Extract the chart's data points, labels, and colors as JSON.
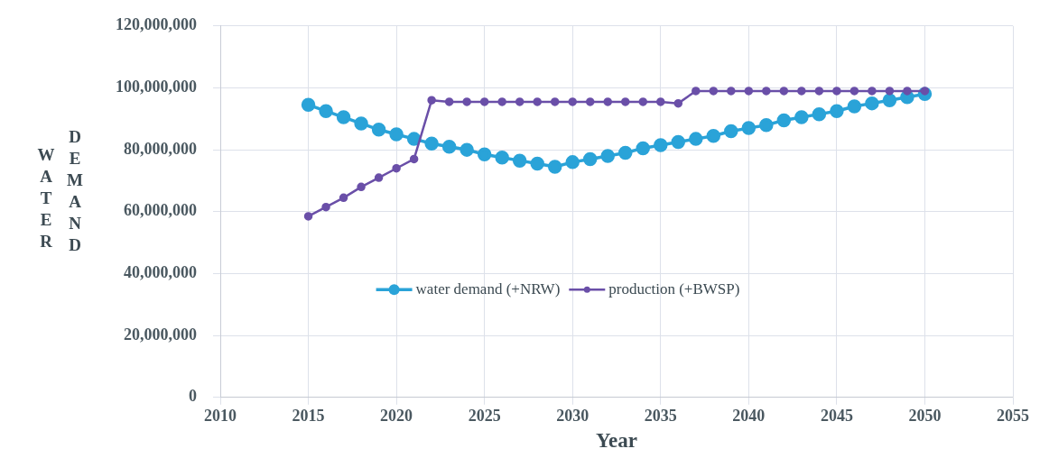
{
  "chart_data": {
    "type": "line",
    "xlabel": "Year",
    "ylabel": "WATER DEMAND",
    "xlim": [
      2010,
      2055
    ],
    "xticks": [
      2010,
      2015,
      2020,
      2025,
      2030,
      2035,
      2040,
      2045,
      2050,
      2055
    ],
    "ylim": [
      0,
      120000000
    ],
    "yticks": [
      0,
      {
        "value": 20000000,
        "label": "20,000,000"
      },
      {
        "value": 40000000,
        "label": "40,000,000"
      },
      {
        "value": 60000000,
        "label": "60,000,000"
      },
      {
        "value": 80000000,
        "label": "80,000,000"
      },
      {
        "value": 100000000,
        "label": "100,000,000"
      },
      {
        "value": 120000000,
        "label": "120,000,000"
      }
    ],
    "grid": true,
    "legend": "center",
    "marker": "circle",
    "x": [
      2015,
      2016,
      2017,
      2018,
      2019,
      2020,
      2021,
      2022,
      2023,
      2024,
      2025,
      2026,
      2027,
      2028,
      2029,
      2030,
      2031,
      2032,
      2033,
      2034,
      2035,
      2036,
      2037,
      2038,
      2039,
      2040,
      2041,
      2042,
      2043,
      2044,
      2045,
      2046,
      2047,
      2048,
      2049,
      2050
    ],
    "series": [
      {
        "name": "water demand (+NRW)",
        "color": "#2aa3d8",
        "values": [
          94500000,
          92500000,
          90500000,
          88500000,
          86500000,
          85000000,
          83500000,
          82000000,
          81000000,
          80000000,
          78500000,
          77500000,
          76500000,
          75500000,
          74500000,
          76000000,
          77000000,
          78000000,
          79000000,
          80500000,
          81500000,
          82500000,
          83500000,
          84500000,
          86000000,
          87000000,
          88000000,
          89500000,
          90500000,
          91500000,
          92500000,
          94000000,
          95000000,
          96000000,
          97000000,
          98000000
        ]
      },
      {
        "name": "production (+BWSP)",
        "color": "#6a4fa8",
        "values": [
          58500000,
          61500000,
          64500000,
          68000000,
          71000000,
          74000000,
          77000000,
          96000000,
          95500000,
          95500000,
          95500000,
          95500000,
          95500000,
          95500000,
          95500000,
          95500000,
          95500000,
          95500000,
          95500000,
          95500000,
          95500000,
          95000000,
          99000000,
          99000000,
          99000000,
          99000000,
          99000000,
          99000000,
          99000000,
          99000000,
          99000000,
          99000000,
          99000000,
          99000000,
          99000000,
          99000000
        ]
      }
    ]
  }
}
